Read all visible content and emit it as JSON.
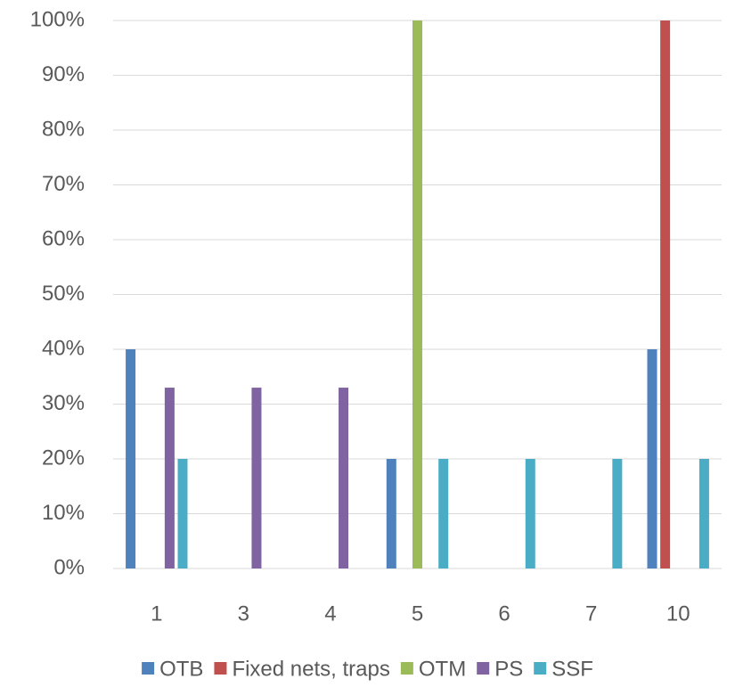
{
  "chart_data": {
    "type": "bar",
    "categories": [
      "1",
      "3",
      "4",
      "5",
      "6",
      "7",
      "10"
    ],
    "series": [
      {
        "name": "OTB",
        "color": "#4f81bd",
        "values": [
          40,
          0,
          0,
          20,
          0,
          0,
          40
        ]
      },
      {
        "name": "Fixed nets, traps",
        "color": "#c0504d",
        "values": [
          0,
          0,
          0,
          0,
          0,
          0,
          100
        ]
      },
      {
        "name": "OTM",
        "color": "#9bbb59",
        "values": [
          0,
          0,
          0,
          100,
          0,
          0,
          0
        ]
      },
      {
        "name": "PS",
        "color": "#8064a2",
        "values": [
          33,
          33,
          33,
          0,
          0,
          0,
          0
        ]
      },
      {
        "name": "SSF",
        "color": "#4bacc6",
        "values": [
          20,
          0,
          0,
          20,
          20,
          20,
          20
        ]
      }
    ],
    "ylim": [
      0,
      100
    ],
    "yticks": [
      {
        "value": 0,
        "label": "0%"
      },
      {
        "value": 10,
        "label": "10%"
      },
      {
        "value": 20,
        "label": "20%"
      },
      {
        "value": 30,
        "label": "30%"
      },
      {
        "value": 40,
        "label": "40%"
      },
      {
        "value": 50,
        "label": "50%"
      },
      {
        "value": 60,
        "label": "60%"
      },
      {
        "value": 70,
        "label": "70%"
      },
      {
        "value": 80,
        "label": "80%"
      },
      {
        "value": 90,
        "label": "90%"
      },
      {
        "value": 100,
        "label": "100%"
      }
    ],
    "grid": true,
    "legend": "bottom"
  }
}
